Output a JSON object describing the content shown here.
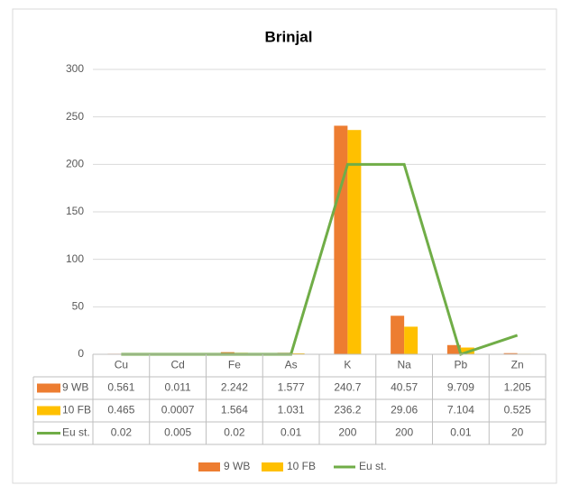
{
  "chart_data": {
    "type": "bar",
    "title": "Brinjal",
    "categories": [
      "Cu",
      "Cd",
      "Fe",
      "As",
      "K",
      "Na",
      "Pb",
      "Zn"
    ],
    "series": [
      {
        "name": "9 WB",
        "color": "#ed7d31",
        "kind": "bar",
        "values": [
          0.561,
          0.011,
          2.242,
          1.577,
          240.7,
          40.57,
          9.709,
          1.205
        ]
      },
      {
        "name": "10 FB",
        "color": "#ffc000",
        "kind": "bar",
        "values": [
          0.465,
          0.0007,
          1.564,
          1.031,
          236.2,
          29.06,
          7.104,
          0.525
        ]
      },
      {
        "name": "Eu st.",
        "color": "#70ad47",
        "kind": "line",
        "values": [
          0.02,
          0.005,
          0.02,
          0.01,
          200,
          200,
          0.01,
          20
        ]
      }
    ],
    "ylim": [
      0,
      300
    ],
    "yticks": [
      0,
      50,
      100,
      150,
      200,
      250,
      300
    ],
    "grid": true,
    "legend": "bottom"
  }
}
